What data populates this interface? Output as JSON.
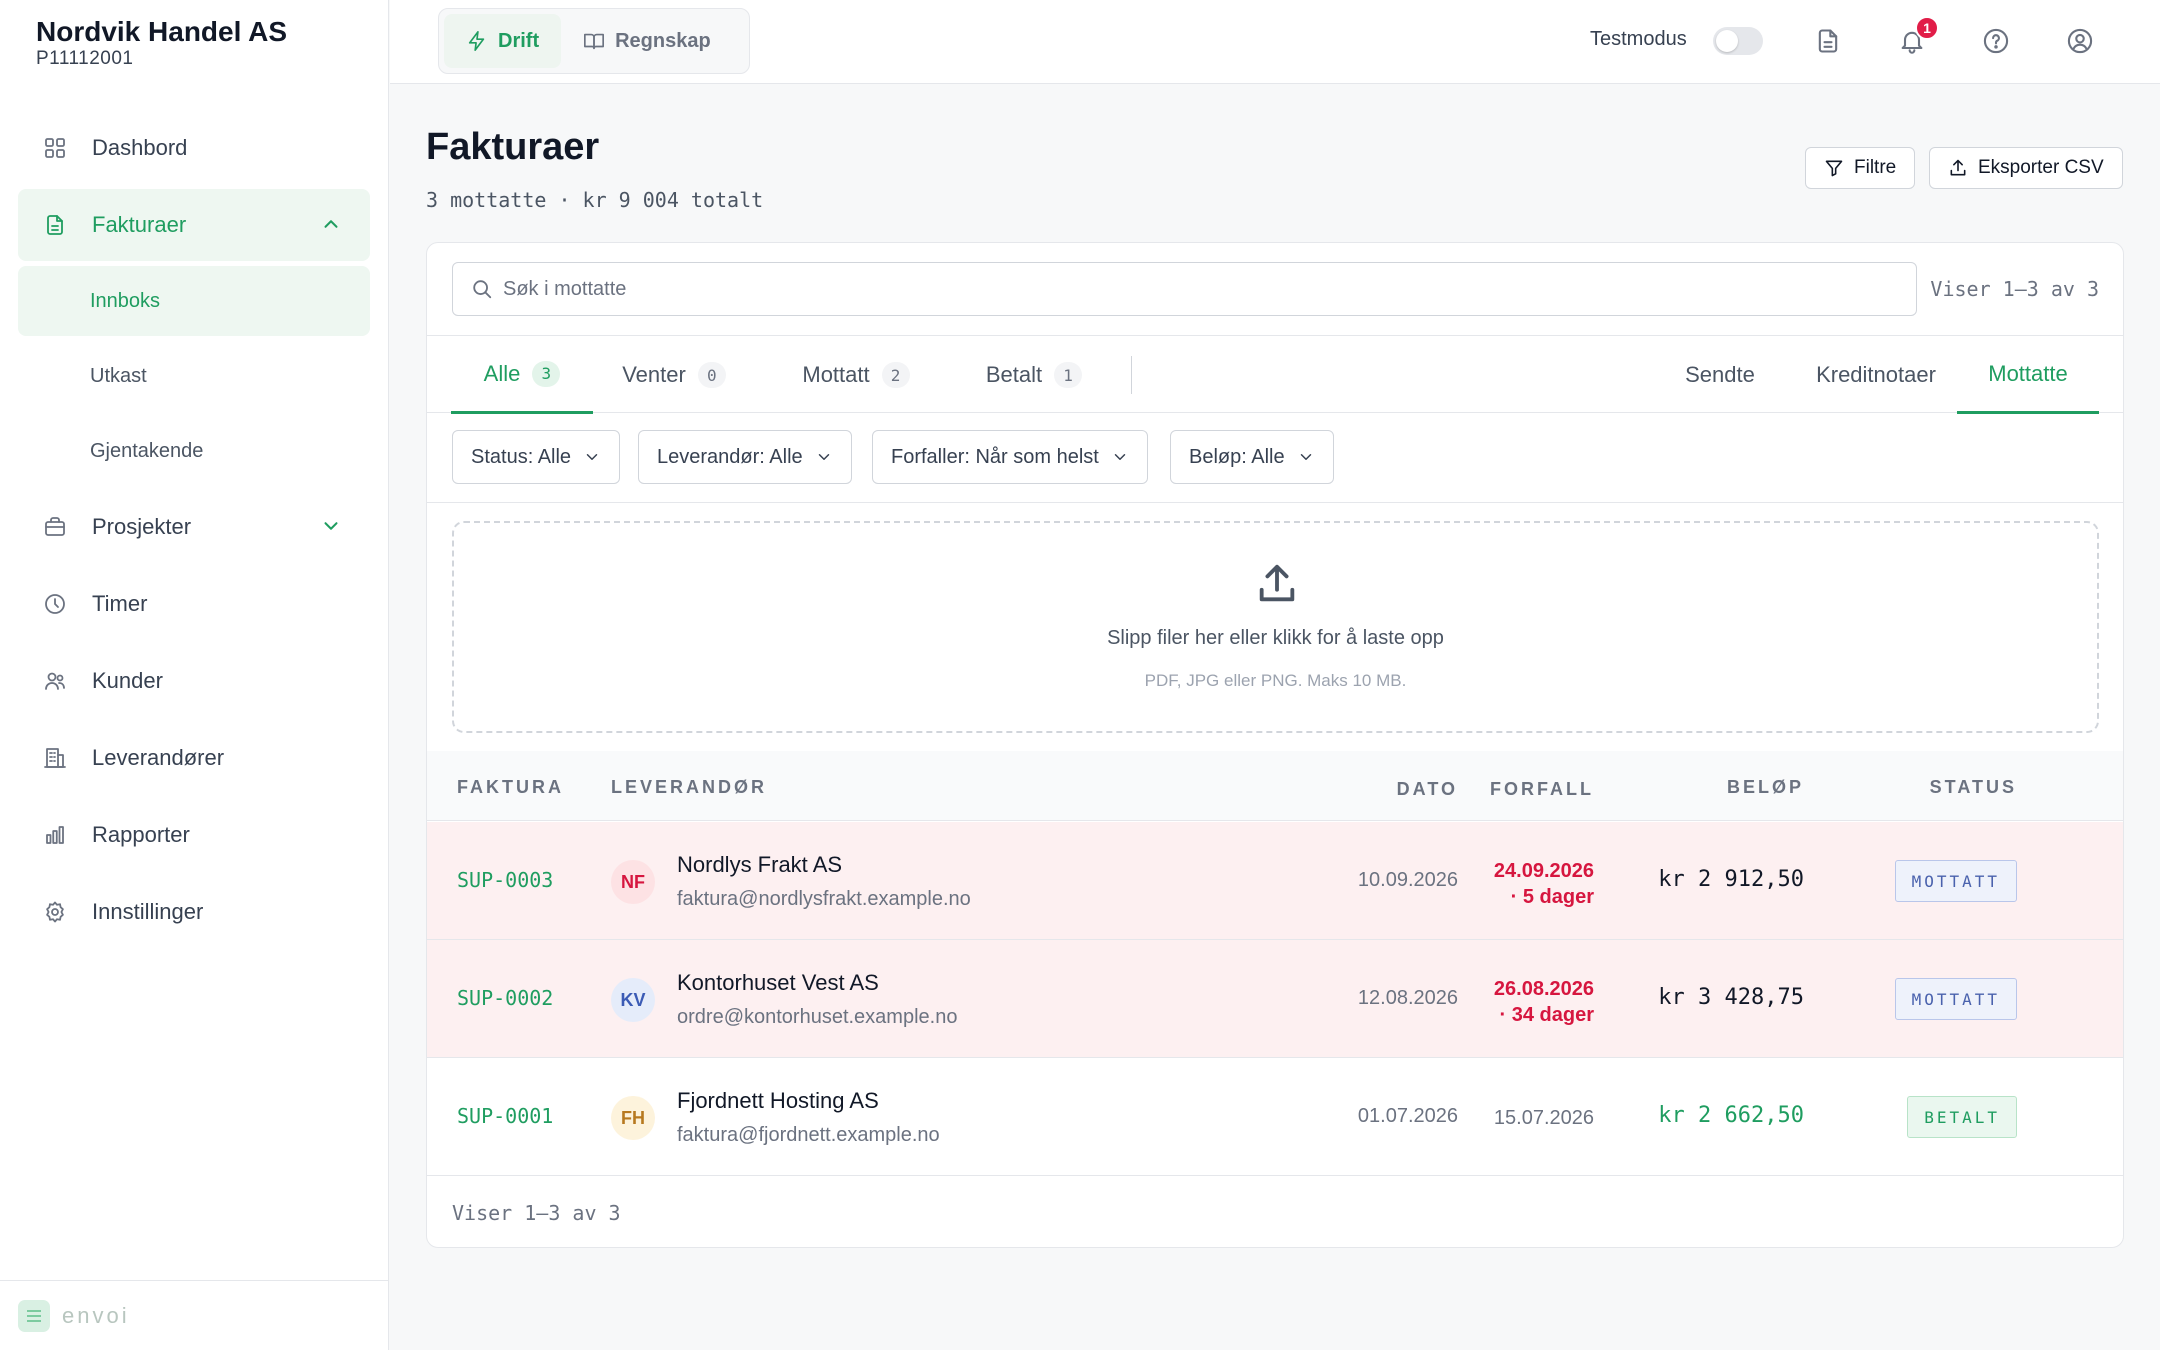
{
  "org": {
    "name": "Nordvik Handel AS",
    "id": "P11112001"
  },
  "sidebar": {
    "items": [
      {
        "label": "Dashbord",
        "icon": "grid-icon"
      },
      {
        "label": "Fakturaer",
        "icon": "document-icon"
      },
      {
        "label": "Prosjekter",
        "icon": "briefcase-icon"
      },
      {
        "label": "Timer",
        "icon": "clock-icon"
      },
      {
        "label": "Kunder",
        "icon": "users-icon"
      },
      {
        "label": "Leverandører",
        "icon": "building-icon"
      },
      {
        "label": "Rapporter",
        "icon": "bar-chart-icon"
      },
      {
        "label": "Innstillinger",
        "icon": "gear-icon"
      }
    ],
    "sub_items": [
      "Innboks",
      "Utkast",
      "Gjentakende"
    ],
    "footer_logo": "envoi"
  },
  "topbar": {
    "modes": [
      "Drift",
      "Regnskap"
    ],
    "testmodus_label": "Testmodus",
    "notification_count": "1"
  },
  "page": {
    "title": "Fakturaer",
    "subtitle": "3 mottatte · kr 9 004 totalt",
    "filter_button": "Filtre",
    "export_button": "Eksporter CSV"
  },
  "search": {
    "placeholder": "Søk i mottatte",
    "showing": "Viser 1–3 av 3"
  },
  "status_tabs": [
    {
      "label": "Alle",
      "count": "3"
    },
    {
      "label": "Venter",
      "count": "0"
    },
    {
      "label": "Mottatt",
      "count": "2"
    },
    {
      "label": "Betalt",
      "count": "1"
    }
  ],
  "type_tabs": [
    "Sendte",
    "Kreditnotaer",
    "Mottatte"
  ],
  "filters": [
    "Status: Alle",
    "Leverandør: Alle",
    "Forfaller: Når som helst",
    "Beløp: Alle"
  ],
  "dropzone": {
    "title": "Slipp filer her eller klikk for å laste opp",
    "subtitle": "PDF, JPG eller PNG. Maks 10 MB."
  },
  "table": {
    "headers": [
      "FAKTURA",
      "LEVERANDØR",
      "DATO",
      "FORFALL",
      "BELØP",
      "STATUS"
    ],
    "rows": [
      {
        "invoice": "SUP-0003",
        "initials": "NF",
        "vendor": "Nordlys Frakt AS",
        "email": "faktura@nordlysfrakt.example.no",
        "date": "10.09.2026",
        "due": "24.09.2026",
        "due_note": "· 5 dager",
        "amount": "kr 2 912,50",
        "status": "MOTTATT"
      },
      {
        "invoice": "SUP-0002",
        "initials": "KV",
        "vendor": "Kontorhuset Vest AS",
        "email": "ordre@kontorhuset.example.no",
        "date": "12.08.2026",
        "due": "26.08.2026",
        "due_note": "· 34 dager",
        "amount": "kr 3 428,75",
        "status": "MOTTATT"
      },
      {
        "invoice": "SUP-0001",
        "initials": "FH",
        "vendor": "Fjordnett Hosting AS",
        "email": "faktura@fjordnett.example.no",
        "date": "01.07.2026",
        "due": "15.07.2026",
        "due_note": "",
        "amount": "kr 2 662,50",
        "status": "BETALT"
      }
    ],
    "footer": "Viser 1–3 av 3"
  },
  "colors": {
    "accent": "#1f9d60",
    "overdue": "#d6163f",
    "overdue_row": "#fdf0f1"
  }
}
